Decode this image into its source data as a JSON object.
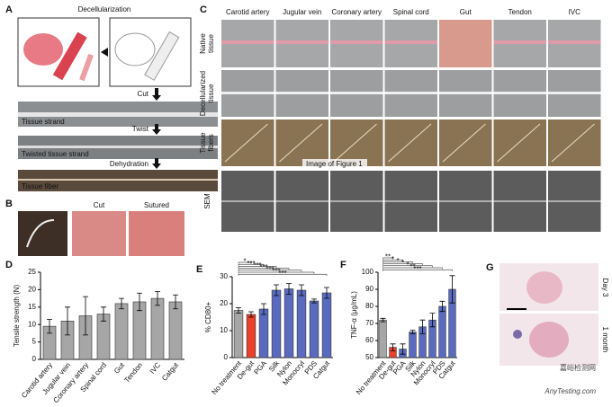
{
  "panel_a": {
    "label": "A",
    "title": "Decellularization",
    "steps": [
      "Cut",
      "Twist",
      "Dehydration"
    ],
    "images": [
      "Tissue strand",
      "Twisted tissue strand",
      "Tissue fiber"
    ]
  },
  "panel_b": {
    "label": "B",
    "images": [
      "Cut",
      "Sutured"
    ]
  },
  "panel_c": {
    "label": "C",
    "columns": [
      "Carotid artery",
      "Jugular vein",
      "Coronary artery",
      "Spinal cord",
      "Gut",
      "Tendon",
      "IVC"
    ],
    "rows": [
      [
        "Native",
        "tissue"
      ],
      [
        "Decellularized",
        "tissue"
      ],
      [
        "Tissue",
        "fibers"
      ],
      [
        "SEM"
      ]
    ],
    "overlay": "Image of Figure 1"
  },
  "panel_g": {
    "label": "G",
    "rows": [
      "Day 3",
      "1 month"
    ]
  },
  "watermark": [
    "嘉峪检测网",
    "AnyTesting.com"
  ],
  "chart_data": [
    {
      "type": "bar",
      "label": "D",
      "ylabel": "Tensile strength (N)",
      "categories": [
        "Carotid artery",
        "Jugular vein",
        "Coronary artery",
        "Spinal cord",
        "Gut",
        "Tendon",
        "IVC",
        "Catgut"
      ],
      "values": [
        9.5,
        11,
        12.5,
        13,
        16,
        16.5,
        17.5,
        16.5
      ],
      "errors": [
        2,
        4,
        5.5,
        2,
        1.5,
        2.5,
        2,
        2
      ],
      "colors": [
        "#a6a6a6",
        "#a6a6a6",
        "#a6a6a6",
        "#a6a6a6",
        "#a6a6a6",
        "#a6a6a6",
        "#a6a6a6",
        "#a6a6a6"
      ],
      "ylim": [
        0,
        25
      ],
      "yticks": [
        0,
        5,
        10,
        15,
        20,
        25
      ]
    },
    {
      "type": "bar",
      "label": "E",
      "ylabel": "% CD80+",
      "categories": [
        "No treatment",
        "De-gut",
        "PGA",
        "Silk",
        "Nylon",
        "Monocryl",
        "PDS",
        "Catgut"
      ],
      "values": [
        17.5,
        16,
        18,
        25,
        25.5,
        25,
        21,
        24
      ],
      "errors": [
        1,
        1,
        2,
        2,
        2,
        2,
        0.7,
        2
      ],
      "colors": [
        "#a6a6a6",
        "#e8412c",
        "#5a6bbf",
        "#5a6bbf",
        "#5a6bbf",
        "#5a6bbf",
        "#5a6bbf",
        "#5a6bbf"
      ],
      "ylim": [
        0,
        30
      ],
      "yticks": [
        0,
        10,
        20,
        30
      ],
      "significance_labels": [
        "*",
        "***",
        "***",
        "***",
        "***",
        "***",
        "***"
      ]
    },
    {
      "type": "bar",
      "label": "F",
      "ylabel": "TNF-α (μg/mL)",
      "categories": [
        "No treatment",
        "De-gut",
        "PGA",
        "Silk",
        "Nylon",
        "Monocryl",
        "PDS",
        "Catgut"
      ],
      "values": [
        72,
        56,
        55,
        65,
        68,
        72,
        80,
        90
      ],
      "errors": [
        1,
        2,
        3,
        1,
        4,
        4,
        3,
        8
      ],
      "colors": [
        "#a6a6a6",
        "#e8412c",
        "#5a6bbf",
        "#5a6bbf",
        "#5a6bbf",
        "#5a6bbf",
        "#5a6bbf",
        "#5a6bbf"
      ],
      "ylim": [
        50,
        100
      ],
      "yticks": [
        50,
        60,
        70,
        80,
        90,
        100
      ],
      "significance_labels": [
        "**",
        "*",
        "*",
        "*",
        "*",
        "**",
        "***"
      ]
    }
  ]
}
